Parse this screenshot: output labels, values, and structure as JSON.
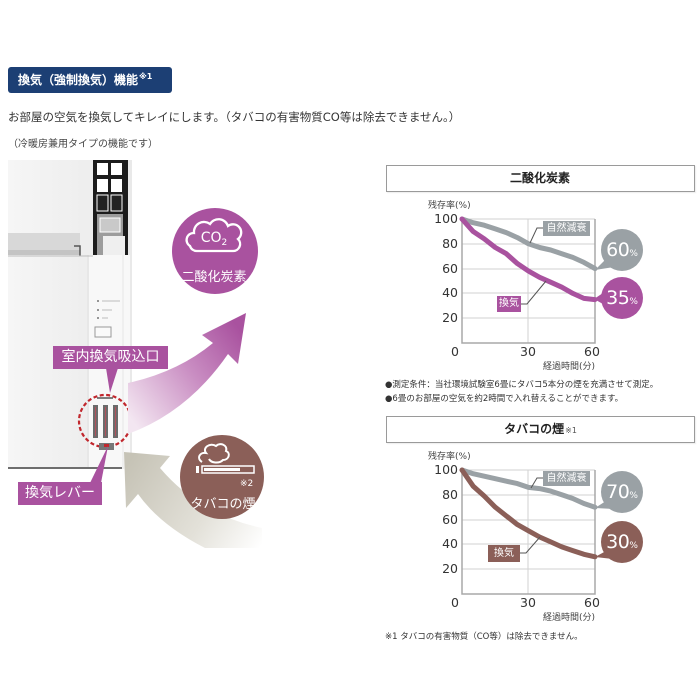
{
  "header": {
    "badge": "換気（強制換気）機能",
    "badge_sup": "※1",
    "intro": "お部屋の空気を換気してキレイにします。（タバコの有害物質CO等は除去できません。）",
    "note": "（冷暖房兼用タイプの機能です）"
  },
  "illustration": {
    "co2_circle": {
      "formula": "CO",
      "subscript": "2",
      "label": "二酸化炭素",
      "icon": "cloud-icon"
    },
    "smoke_circle": {
      "note": "※2",
      "label": "タバコの煙",
      "icon": "cigarette-smoke-icon"
    },
    "intake_label": "室内換気吸込口",
    "lever_label": "換気レバー"
  },
  "colors": {
    "header_badge": "#1c3f74",
    "ventilation_co2": "#a9529f",
    "ventilation_smoke": "#8b5f58",
    "natural_decay": "#9aa1a5",
    "callout": "#a9529f",
    "highlight_circle": "#c1272d"
  },
  "chart_data": [
    {
      "type": "line",
      "title": "二酸化炭素",
      "title_sup": "",
      "ylabel": "残存率(%)",
      "xlabel": "経過時間(分)",
      "x": [
        0,
        5,
        10,
        15,
        20,
        25,
        30,
        35,
        40,
        45,
        50,
        55,
        60
      ],
      "xticks": [
        "0",
        "30",
        "60"
      ],
      "yticks": [
        "100",
        "80",
        "60",
        "40",
        "20"
      ],
      "xlim": [
        0,
        60
      ],
      "ylim": [
        0,
        100
      ],
      "grid": true,
      "legend_position": "inline labels on lines",
      "series": [
        {
          "name": "自然減衰",
          "values": [
            100,
            97,
            95,
            92,
            89,
            85,
            80,
            77,
            75,
            72,
            69,
            65,
            60
          ],
          "end_label": "60",
          "unit": "%",
          "color": "#9aa1a5"
        },
        {
          "name": "換気",
          "values": [
            100,
            90,
            84,
            77,
            72,
            64,
            58,
            53,
            49,
            45,
            40,
            36,
            35
          ],
          "end_label": "35",
          "unit": "%",
          "color": "#a9529f"
        }
      ],
      "notes": [
        "●測定条件：当社環境試験室6畳にタバコ5本分の煙を充満させて測定。",
        "●6畳のお部屋の空気を約2時間で入れ替えることができます。"
      ]
    },
    {
      "type": "line",
      "title": "タバコの煙",
      "title_sup": "※1",
      "ylabel": "残存率(%)",
      "xlabel": "経過時間(分)",
      "x": [
        0,
        5,
        10,
        15,
        20,
        25,
        30,
        35,
        40,
        45,
        50,
        55,
        60
      ],
      "xticks": [
        "0",
        "30",
        "60"
      ],
      "yticks": [
        "100",
        "80",
        "60",
        "40",
        "20"
      ],
      "xlim": [
        0,
        60
      ],
      "ylim": [
        0,
        100
      ],
      "grid": true,
      "legend_position": "inline labels on lines",
      "series": [
        {
          "name": "自然減衰",
          "values": [
            100,
            97,
            95,
            93,
            91,
            89,
            86,
            85,
            83,
            80,
            77,
            73,
            70
          ],
          "end_label": "70",
          "unit": "%",
          "color": "#9aa1a5"
        },
        {
          "name": "換気",
          "values": [
            100,
            87,
            79,
            70,
            63,
            56,
            51,
            46,
            42,
            38,
            35,
            32,
            30
          ],
          "end_label": "30",
          "unit": "%",
          "color": "#8b5f58"
        }
      ]
    }
  ],
  "footer": {
    "note": "※1 タバコの有害物質（CO等）は除去できません。"
  }
}
